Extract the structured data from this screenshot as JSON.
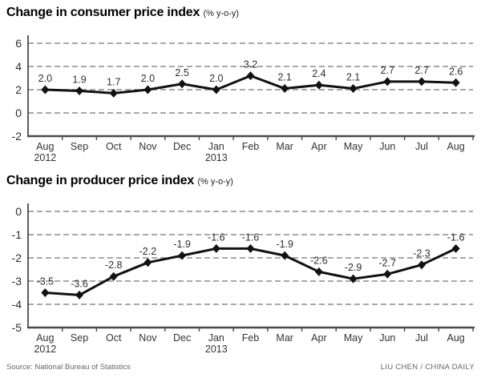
{
  "chart_data": [
    {
      "type": "line",
      "title": "Change in consumer price index",
      "subtitle": "(% y-o-y)",
      "categories": [
        "Aug",
        "Sep",
        "Oct",
        "Nov",
        "Dec",
        "Jan",
        "Feb",
        "Mar",
        "Apr",
        "May",
        "Jun",
        "Jul",
        "Aug"
      ],
      "sub_labels": {
        "0": "2012",
        "5": "2013"
      },
      "values": [
        2.0,
        1.9,
        1.7,
        2.0,
        2.5,
        2.0,
        3.2,
        2.1,
        2.4,
        2.1,
        2.7,
        2.7,
        2.6
      ],
      "ylim": [
        -2,
        6
      ],
      "yticks": [
        6,
        4,
        2,
        0,
        -2
      ],
      "grid": "horizontal-dashed",
      "legend": "none",
      "marker": "diamond",
      "line_color": "#121212",
      "grid_color": "#8c8c8c",
      "axis_color": "#4a4a4a",
      "label_color": "#2e2e2e",
      "xlabel": "",
      "ylabel": ""
    },
    {
      "type": "line",
      "title": "Change in producer price index",
      "subtitle": "(% y-o-y)",
      "categories": [
        "Aug",
        "Sep",
        "Oct",
        "Nov",
        "Dec",
        "Jan",
        "Feb",
        "Mar",
        "Apr",
        "May",
        "Jun",
        "Jul",
        "Aug"
      ],
      "sub_labels": {
        "0": "2012",
        "5": "2013"
      },
      "values": [
        -3.5,
        -3.6,
        -2.8,
        -2.2,
        -1.9,
        -1.6,
        -1.6,
        -1.9,
        -2.6,
        -2.9,
        -2.7,
        -2.3,
        -1.6
      ],
      "ylim": [
        -5,
        0
      ],
      "yticks": [
        0,
        -1,
        -2,
        -3,
        -4,
        -5
      ],
      "grid": "horizontal-dashed",
      "legend": "none",
      "marker": "diamond",
      "line_color": "#121212",
      "grid_color": "#8c8c8c",
      "axis_color": "#4a4a4a",
      "label_color": "#2e2e2e",
      "xlabel": "",
      "ylabel": ""
    }
  ],
  "footer": {
    "source": "Source: National Bureau of Statistics",
    "credit": "LIU CHEN / CHINA DAILY"
  }
}
